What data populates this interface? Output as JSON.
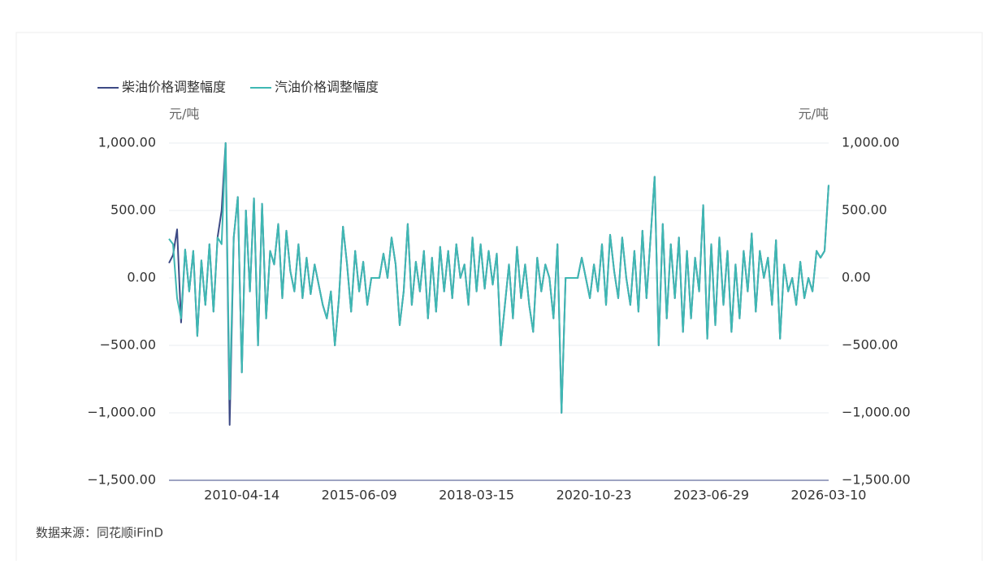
{
  "chart_data": {
    "type": "line",
    "y_unit": "元/吨",
    "y2_unit": "元/吨",
    "source": "数据来源：同花顺iFinD",
    "categories": [
      null,
      null,
      null,
      null,
      null,
      null,
      null,
      null,
      null,
      null,
      null,
      null,
      null,
      null,
      null,
      null,
      null,
      null,
      "2010-04-14",
      null,
      null,
      null,
      null,
      null,
      null,
      null,
      null,
      null,
      null,
      null,
      null,
      null,
      null,
      null,
      null,
      null,
      null,
      null,
      null,
      null,
      null,
      null,
      null,
      null,
      null,
      null,
      null,
      "2015-06-09",
      null,
      null,
      null,
      null,
      null,
      null,
      null,
      null,
      null,
      null,
      null,
      null,
      null,
      null,
      null,
      null,
      null,
      null,
      null,
      null,
      null,
      null,
      null,
      null,
      null,
      null,
      null,
      null,
      "2018-03-15",
      null,
      null,
      null,
      null,
      null,
      null,
      null,
      null,
      null,
      null,
      null,
      null,
      null,
      null,
      null,
      null,
      null,
      null,
      null,
      null,
      null,
      null,
      null,
      null,
      null,
      null,
      null,
      null,
      "2020-10-23",
      null,
      null,
      null,
      null,
      null,
      null,
      null,
      null,
      null,
      null,
      null,
      null,
      null,
      null,
      null,
      null,
      null,
      null,
      null,
      null,
      null,
      null,
      null,
      null,
      null,
      null,
      null,
      null,
      "2023-06-29",
      null,
      null,
      null,
      null,
      null,
      null,
      null,
      null,
      null,
      null,
      null,
      null,
      null,
      null,
      null,
      null,
      null,
      null,
      null,
      null,
      null,
      null,
      null,
      null,
      null,
      null,
      null,
      null,
      "2026-03-10"
    ],
    "series": [
      {
        "name": "柴油价格调整幅度",
        "color": "#3d4a85",
        "values": [
          110,
          170,
          360,
          -330,
          210,
          -100,
          200,
          -430,
          130,
          -200,
          250,
          -250,
          300,
          500,
          1000,
          -1090,
          300,
          600,
          -700,
          500,
          -100,
          590,
          -500,
          550,
          -300,
          200,
          100,
          400,
          -150,
          350,
          50,
          -100,
          250,
          -150,
          150,
          -120,
          100,
          -50,
          -200,
          -300,
          -100,
          -500,
          -150,
          380,
          100,
          -250,
          200,
          -100,
          120,
          -200,
          0,
          0,
          0,
          180,
          0,
          300,
          100,
          -350,
          -100,
          400,
          -200,
          120,
          -100,
          200,
          -300,
          150,
          -250,
          230,
          -100,
          200,
          -150,
          250,
          0,
          100,
          -200,
          300,
          -100,
          250,
          -80,
          200,
          -50,
          180,
          -500,
          -200,
          100,
          -300,
          230,
          -150,
          100,
          -200,
          -400,
          150,
          -100,
          100,
          0,
          -300,
          250,
          -1000,
          0,
          0,
          0,
          0,
          150,
          0,
          -150,
          100,
          -100,
          250,
          -200,
          320,
          50,
          -150,
          300,
          0,
          -200,
          200,
          -250,
          350,
          -150,
          300,
          750,
          -500,
          400,
          -300,
          250,
          -150,
          300,
          -400,
          200,
          -300,
          150,
          -100,
          540,
          -450,
          250,
          -350,
          300,
          -200,
          200,
          -400,
          100,
          -300,
          200,
          -100,
          330,
          -250,
          200,
          0,
          150,
          -200,
          280,
          -450,
          100,
          -100,
          0,
          -200,
          120,
          -150,
          0,
          -100,
          200,
          150,
          200,
          690
        ]
      },
      {
        "name": "汽油价格调整幅度",
        "color": "#3fb8b3",
        "values": [
          290,
          250,
          -150,
          -300,
          210,
          -100,
          200,
          -430,
          130,
          -200,
          250,
          -250,
          300,
          250,
          1000,
          -900,
          300,
          600,
          -700,
          500,
          -100,
          590,
          -500,
          550,
          -300,
          200,
          100,
          400,
          -150,
          350,
          50,
          -100,
          250,
          -150,
          150,
          -120,
          100,
          -50,
          -200,
          -300,
          -100,
          -500,
          -150,
          380,
          100,
          -250,
          200,
          -100,
          120,
          -200,
          0,
          0,
          0,
          180,
          0,
          300,
          100,
          -350,
          -100,
          400,
          -200,
          120,
          -100,
          200,
          -300,
          150,
          -250,
          230,
          -100,
          200,
          -150,
          250,
          0,
          100,
          -200,
          300,
          -100,
          250,
          -80,
          200,
          -50,
          180,
          -500,
          -200,
          100,
          -300,
          230,
          -150,
          100,
          -200,
          -400,
          150,
          -100,
          100,
          0,
          -300,
          250,
          -1000,
          0,
          0,
          0,
          0,
          150,
          0,
          -150,
          100,
          -100,
          250,
          -200,
          320,
          50,
          -150,
          300,
          0,
          -200,
          200,
          -250,
          350,
          -150,
          300,
          750,
          -500,
          400,
          -300,
          250,
          -150,
          300,
          -400,
          200,
          -300,
          150,
          -100,
          540,
          -450,
          250,
          -350,
          300,
          -200,
          200,
          -400,
          100,
          -300,
          200,
          -100,
          330,
          -250,
          200,
          0,
          150,
          -200,
          280,
          -450,
          100,
          -100,
          0,
          -200,
          120,
          -150,
          0,
          -100,
          200,
          150,
          200,
          690
        ]
      }
    ],
    "ylim": [
      -1500,
      1000
    ],
    "yticks": [
      {
        "value": -1500,
        "label": "−1,500.00"
      },
      {
        "value": -1000,
        "label": "−1,000.00"
      },
      {
        "value": -500,
        "label": "−500.00"
      },
      {
        "value": 0,
        "label": "0.00"
      },
      {
        "value": 500,
        "label": "500.00"
      },
      {
        "value": 1000,
        "label": "1,000.00"
      }
    ],
    "y2lim": [
      -1500,
      1000
    ],
    "y2ticks": [
      {
        "value": -1500,
        "label": "−1,500.00"
      },
      {
        "value": -1000,
        "label": "−1,000.00"
      },
      {
        "value": -500,
        "label": "−500.00"
      },
      {
        "value": 0,
        "label": "0.00"
      },
      {
        "value": 500,
        "label": "500.00"
      },
      {
        "value": 1000,
        "label": "1,000.00"
      }
    ],
    "grid": true,
    "legend": "top-left"
  }
}
